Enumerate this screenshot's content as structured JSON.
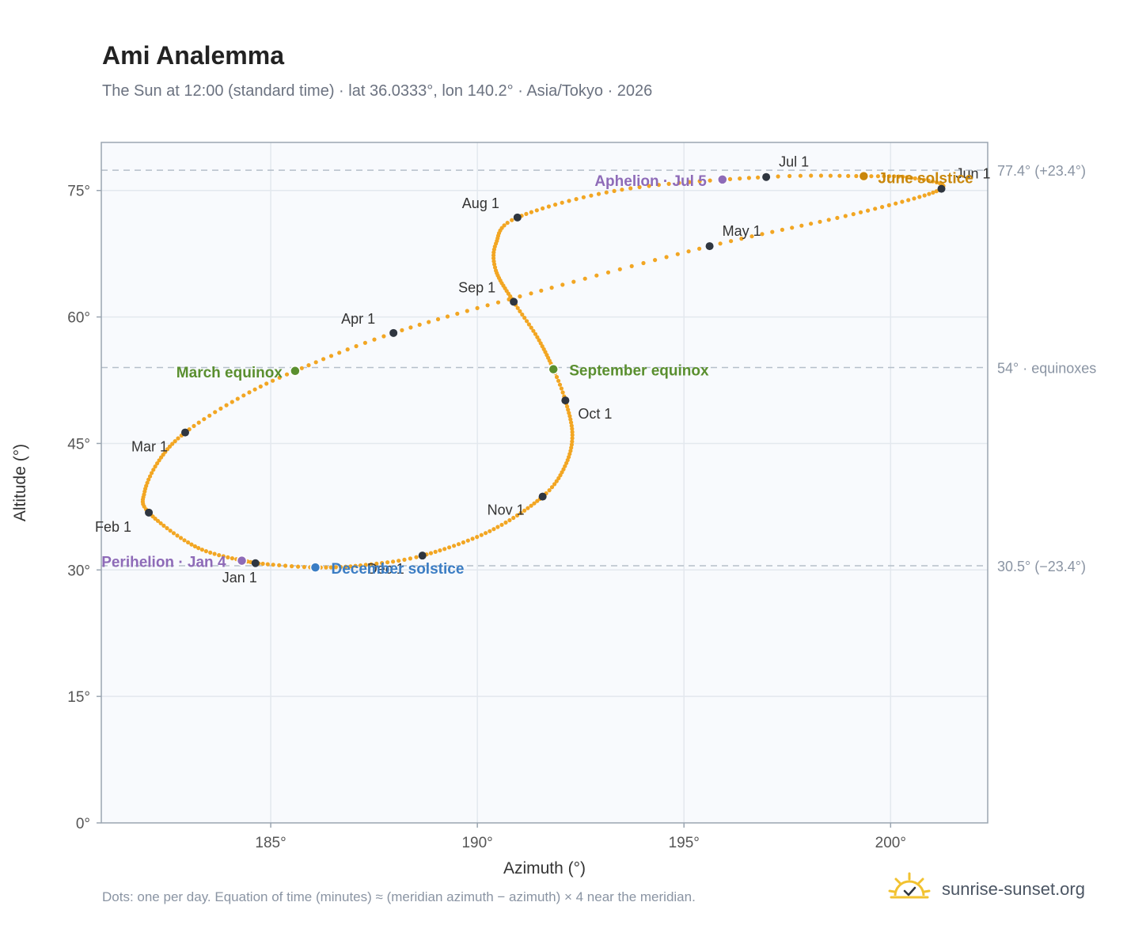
{
  "header": {
    "title": "Ami Analemma",
    "subtitle": "The Sun at 12:00 (standard time) · lat 36.0333°, lon 140.2° · Asia/Tokyo · 2026"
  },
  "footer": {
    "note": "Dots: one per day. Equation of time (minutes) ≈ (meridian azimuth − azimuth) × 4 near the meridian.",
    "brand": "sunrise-sunset.org"
  },
  "colors": {
    "curve": "#f2a623",
    "month_marker": "#2f3640",
    "equinox": "#5a8f2f",
    "june_solstice": "#c9870b",
    "december_solstice": "#3b7dc4",
    "apsis": "#8e6bb8",
    "plot_bg": "#f8fafd",
    "grid": "#e3e8ee",
    "ref_line": "#b5bfca"
  },
  "chart_data": {
    "type": "scatter",
    "title": "Ami Analemma",
    "xlabel": "Azimuth (°)",
    "ylabel": "Altitude (°)",
    "xlim": [
      180.9,
      202.35
    ],
    "ylim": [
      0,
      80.7
    ],
    "x_ticks": [
      185,
      190,
      195,
      200
    ],
    "x_tick_labels": [
      "185°",
      "190°",
      "195°",
      "200°"
    ],
    "y_ticks": [
      0,
      15,
      30,
      45,
      60,
      75
    ],
    "y_tick_labels": [
      "0°",
      "15°",
      "30°",
      "45°",
      "60°",
      "75°"
    ],
    "grid": true,
    "reference_lines": [
      {
        "y": 77.4,
        "label": "77.4° (+23.4°)"
      },
      {
        "y": 54.0,
        "label": "54° · equinoxes"
      },
      {
        "y": 30.5,
        "label": "30.5° (−23.4°)"
      }
    ],
    "month_markers": [
      {
        "label": "Jan 1",
        "az": 184.63,
        "alt": 30.8
      },
      {
        "label": "Feb 1",
        "az": 182.05,
        "alt": 36.8
      },
      {
        "label": "Mar 1",
        "az": 182.93,
        "alt": 46.3
      },
      {
        "label": "Apr 1",
        "az": 187.97,
        "alt": 58.1
      },
      {
        "label": "May 1",
        "az": 195.62,
        "alt": 68.4
      },
      {
        "label": "Jun 1",
        "az": 201.23,
        "alt": 75.2
      },
      {
        "label": "Jul 1",
        "az": 196.99,
        "alt": 76.6
      },
      {
        "label": "Aug 1",
        "az": 190.97,
        "alt": 71.8
      },
      {
        "label": "Sep 1",
        "az": 190.88,
        "alt": 61.8
      },
      {
        "label": "Oct 1",
        "az": 192.13,
        "alt": 50.1
      },
      {
        "label": "Nov 1",
        "az": 191.58,
        "alt": 38.7
      },
      {
        "label": "Dec 1",
        "az": 188.67,
        "alt": 31.7
      }
    ],
    "events": [
      {
        "label": "March equinox",
        "az": 185.59,
        "alt": 53.6,
        "kind": "equinox"
      },
      {
        "label": "June solstice",
        "az": 199.35,
        "alt": 76.7,
        "kind": "june_solstice"
      },
      {
        "label": "September equinox",
        "az": 191.84,
        "alt": 53.8,
        "kind": "equinox"
      },
      {
        "label": "December solstice",
        "az": 186.08,
        "alt": 30.3,
        "kind": "december_solstice"
      },
      {
        "label": "Perihelion · Jan 4",
        "az": 184.3,
        "alt": 31.1,
        "kind": "apsis"
      },
      {
        "label": "Aphelion · Jul 5",
        "az": 195.93,
        "alt": 76.3,
        "kind": "apsis"
      }
    ],
    "curve_anchors": [
      {
        "day": 1,
        "az": 184.63,
        "alt": 30.8
      },
      {
        "day": 16,
        "az": 183.25,
        "alt": 32.6
      },
      {
        "day": 32,
        "az": 182.05,
        "alt": 36.8
      },
      {
        "day": 40,
        "az": 181.95,
        "alt": 39.3
      },
      {
        "day": 50,
        "az": 182.3,
        "alt": 43.0
      },
      {
        "day": 60,
        "az": 182.93,
        "alt": 46.3
      },
      {
        "day": 70,
        "az": 184.2,
        "alt": 50.3
      },
      {
        "day": 79,
        "az": 185.59,
        "alt": 53.6
      },
      {
        "day": 91,
        "az": 187.97,
        "alt": 58.1
      },
      {
        "day": 105,
        "az": 191.3,
        "alt": 62.8
      },
      {
        "day": 121,
        "az": 195.62,
        "alt": 68.4
      },
      {
        "day": 136,
        "az": 199.1,
        "alt": 72.2
      },
      {
        "day": 152,
        "az": 201.23,
        "alt": 75.2
      },
      {
        "day": 163,
        "az": 200.5,
        "alt": 76.5
      },
      {
        "day": 172,
        "az": 199.35,
        "alt": 76.7
      },
      {
        "day": 182,
        "az": 196.99,
        "alt": 76.6
      },
      {
        "day": 197,
        "az": 193.5,
        "alt": 75.1
      },
      {
        "day": 213,
        "az": 190.97,
        "alt": 71.8
      },
      {
        "day": 223,
        "az": 190.45,
        "alt": 68.7
      },
      {
        "day": 232,
        "az": 190.45,
        "alt": 65.5
      },
      {
        "day": 244,
        "az": 190.88,
        "alt": 61.8
      },
      {
        "day": 255,
        "az": 191.45,
        "alt": 57.6
      },
      {
        "day": 266,
        "az": 191.84,
        "alt": 53.8
      },
      {
        "day": 274,
        "az": 192.13,
        "alt": 50.1
      },
      {
        "day": 285,
        "az": 192.3,
        "alt": 46.0
      },
      {
        "day": 295,
        "az": 192.12,
        "alt": 42.3
      },
      {
        "day": 305,
        "az": 191.58,
        "alt": 38.7
      },
      {
        "day": 320,
        "az": 190.3,
        "alt": 34.6
      },
      {
        "day": 335,
        "az": 188.67,
        "alt": 31.7
      },
      {
        "day": 345,
        "az": 187.3,
        "alt": 30.6
      },
      {
        "day": 355,
        "az": 186.08,
        "alt": 30.3
      },
      {
        "day": 366,
        "az": 184.63,
        "alt": 30.8
      }
    ]
  }
}
